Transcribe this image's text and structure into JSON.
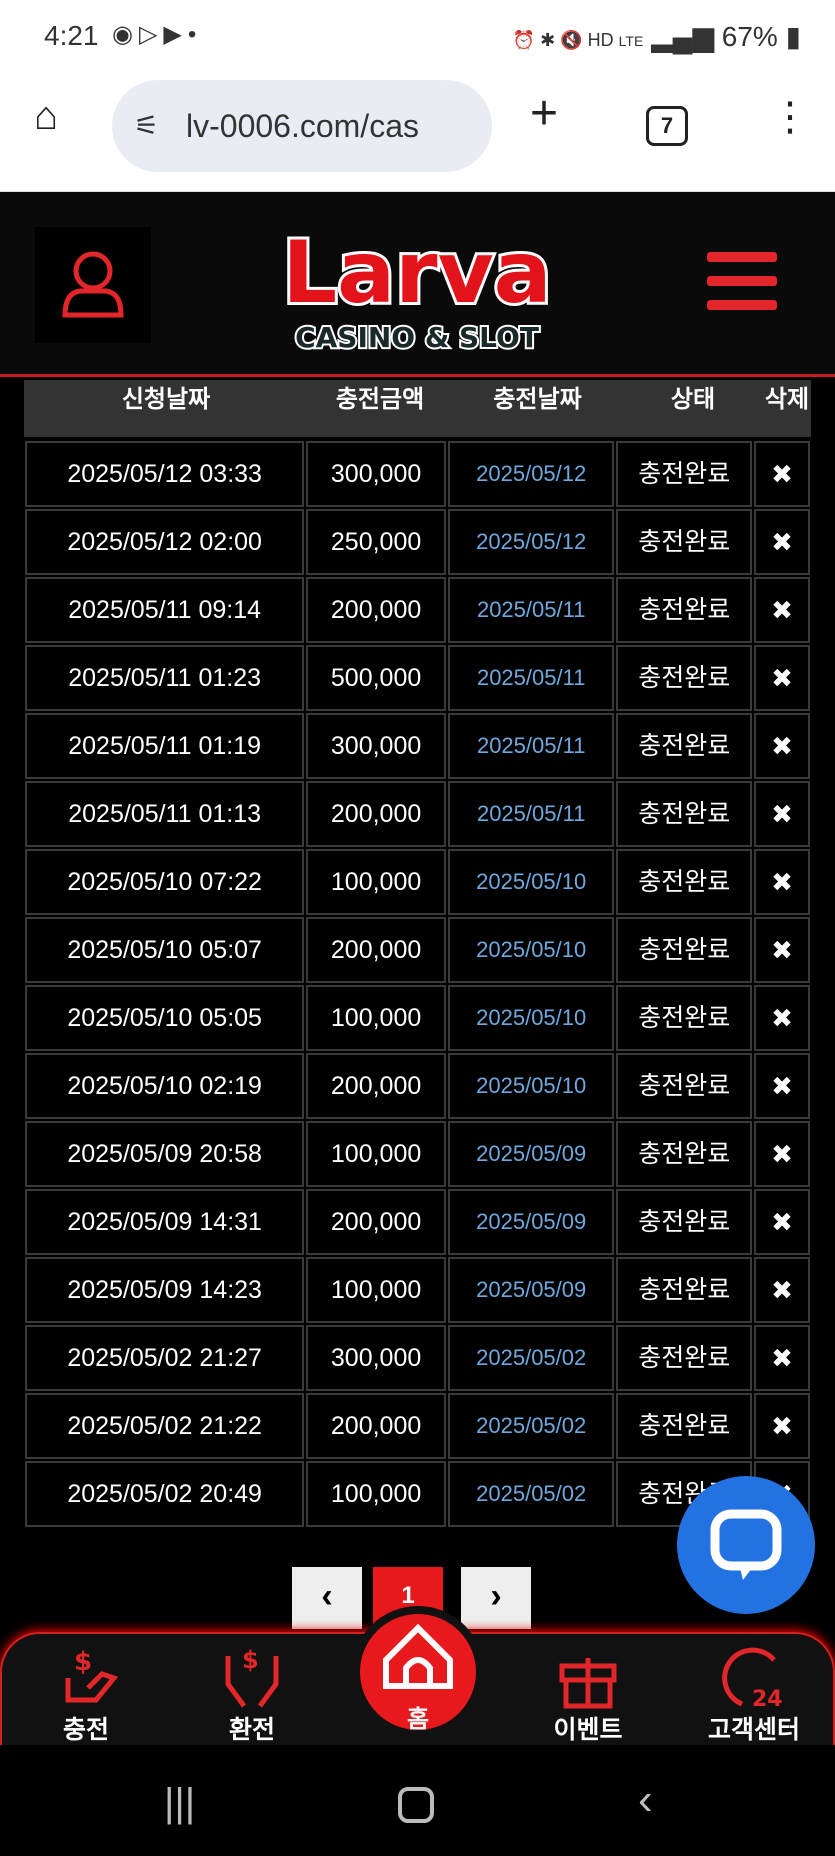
{
  "status_bar": {
    "time": "4:21",
    "battery": "67%",
    "network": "LTE"
  },
  "browser": {
    "url": "lv-0006.com/cas",
    "tab_count": "7"
  },
  "header": {
    "logo_text": "Larva",
    "logo_sub": "CASINO & SLOT",
    "accent": "#e3262a"
  },
  "table": {
    "columns": [
      "신청날짜",
      "충전금액",
      "충전날짜",
      "상태",
      "삭제"
    ],
    "rows": [
      [
        "2025/05/12 03:33",
        "300,000",
        "2025/05/12",
        "충전완료",
        "✖"
      ],
      [
        "2025/05/12 02:00",
        "250,000",
        "2025/05/12",
        "충전완료",
        "✖"
      ],
      [
        "2025/05/11 09:14",
        "200,000",
        "2025/05/11",
        "충전완료",
        "✖"
      ],
      [
        "2025/05/11 01:23",
        "500,000",
        "2025/05/11",
        "충전완료",
        "✖"
      ],
      [
        "2025/05/11 01:19",
        "300,000",
        "2025/05/11",
        "충전완료",
        "✖"
      ],
      [
        "2025/05/11 01:13",
        "200,000",
        "2025/05/11",
        "충전완료",
        "✖"
      ],
      [
        "2025/05/10 07:22",
        "100,000",
        "2025/05/10",
        "충전완료",
        "✖"
      ],
      [
        "2025/05/10 05:07",
        "200,000",
        "2025/05/10",
        "충전완료",
        "✖"
      ],
      [
        "2025/05/10 05:05",
        "100,000",
        "2025/05/10",
        "충전완료",
        "✖"
      ],
      [
        "2025/05/10 02:19",
        "200,000",
        "2025/05/10",
        "충전완료",
        "✖"
      ],
      [
        "2025/05/09 20:58",
        "100,000",
        "2025/05/09",
        "충전완료",
        "✖"
      ],
      [
        "2025/05/09 14:31",
        "200,000",
        "2025/05/09",
        "충전완료",
        "✖"
      ],
      [
        "2025/05/09 14:23",
        "100,000",
        "2025/05/09",
        "충전완료",
        "✖"
      ],
      [
        "2025/05/02 21:27",
        "300,000",
        "2025/05/02",
        "충전완료",
        "✖"
      ],
      [
        "2025/05/02 21:22",
        "200,000",
        "2025/05/02",
        "충전완료",
        "✖"
      ],
      [
        "2025/05/02 20:49",
        "100,000",
        "2025/05/02",
        "충전완료",
        "✖"
      ]
    ]
  },
  "pagination": {
    "prev": "‹",
    "current": "1",
    "next": "›"
  },
  "bottom_nav": [
    {
      "label": "충전",
      "icon": "deposit-icon"
    },
    {
      "label": "환전",
      "icon": "withdraw-icon"
    },
    {
      "label": "홈",
      "icon": "home-icon"
    },
    {
      "label": "이벤트",
      "icon": "gift-icon"
    },
    {
      "label": "고객센터",
      "icon": "support-24-icon"
    }
  ]
}
